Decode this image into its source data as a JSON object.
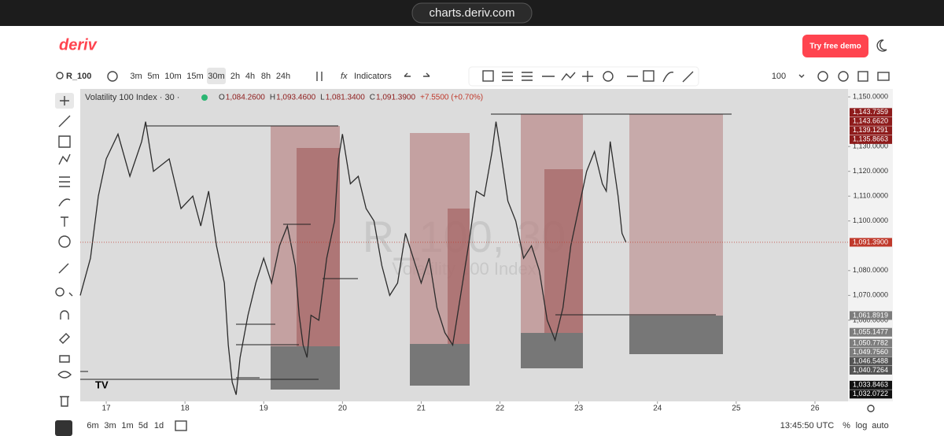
{
  "url": "charts.deriv.com",
  "header": {
    "logo": "deriv",
    "cta": "Try free demo"
  },
  "toolbar": {
    "symbol": "R_100",
    "intervals": [
      "3m",
      "5m",
      "10m",
      "15m",
      "30m",
      "2h",
      "4h",
      "8h",
      "24h"
    ],
    "selected_interval": 4,
    "indicators": "Indicators",
    "zoom": "100"
  },
  "chart": {
    "type": "line",
    "title": "Volatility 100 Index · 30 ·",
    "ohlc": {
      "o_label": "O",
      "o": "1,084.2600",
      "h_label": "H",
      "h": "1,093.4600",
      "l_label": "L",
      "l": "1,081.3400",
      "c_label": "C",
      "c": "1,091.3900",
      "change": "+7.5500 (+0.70%)"
    },
    "watermark": "R_100, 30",
    "watermark_sub": "Volatility 100 Index",
    "series": {
      "color": "#2b2b2b",
      "x": [
        16.67,
        16.8,
        16.9,
        17.0,
        17.15,
        17.3,
        17.45,
        17.5,
        17.6,
        17.8,
        17.95,
        18.1,
        18.2,
        18.3,
        18.4,
        18.5,
        18.55,
        18.6,
        18.65,
        18.7,
        18.8,
        18.9,
        19.0,
        19.1,
        19.2,
        19.3,
        19.4,
        19.45,
        19.5,
        19.55,
        19.6,
        19.7,
        19.8,
        19.9,
        19.95,
        20.0,
        20.1,
        20.2,
        20.3,
        20.4,
        20.5,
        20.6,
        20.7,
        20.8,
        20.9,
        21.0,
        21.1,
        21.2,
        21.3,
        21.4,
        21.5,
        21.6,
        21.7,
        21.8,
        21.9,
        21.95,
        22.0,
        22.1,
        22.2,
        22.3,
        22.4,
        22.5,
        22.6,
        22.7,
        22.8,
        22.9,
        23.0,
        23.1,
        23.2,
        23.3,
        23.35,
        23.4,
        23.5,
        23.55,
        23.6
      ],
      "values": [
        1070,
        1085,
        1110,
        1125,
        1135,
        1118,
        1132,
        1140,
        1120,
        1125,
        1105,
        1110,
        1098,
        1112,
        1090,
        1075,
        1050,
        1035,
        1030,
        1045,
        1062,
        1075,
        1085,
        1075,
        1090,
        1098,
        1082,
        1062,
        1050,
        1045,
        1062,
        1060,
        1085,
        1100,
        1125,
        1135,
        1115,
        1118,
        1105,
        1100,
        1082,
        1070,
        1075,
        1095,
        1085,
        1075,
        1085,
        1065,
        1055,
        1050,
        1070,
        1090,
        1112,
        1110,
        1128,
        1140,
        1130,
        1108,
        1100,
        1085,
        1090,
        1080,
        1060,
        1052,
        1065,
        1090,
        1105,
        1120,
        1128,
        1115,
        1112,
        1132,
        1110,
        1095,
        1091.39
      ]
    },
    "xlim": [
      16.67,
      26.42
    ],
    "ylim": [
      1027.3,
      1153.2
    ],
    "xticks": [
      17,
      18,
      19,
      20,
      21,
      22,
      23,
      24,
      25,
      26
    ],
    "yticks": [
      {
        "value": 1150,
        "label": "1,150.0000"
      },
      {
        "value": 1130,
        "label": "1,130.0000"
      },
      {
        "value": 1120,
        "label": "1,120.0000"
      },
      {
        "value": 1110,
        "label": "1,110.0000"
      },
      {
        "value": 1100,
        "label": "1,100.0000"
      },
      {
        "value": 1080,
        "label": "1,080.0000"
      },
      {
        "value": 1070,
        "label": "1,070.0000"
      },
      {
        "value": 1060,
        "label": "1,060.0000"
      }
    ],
    "tags": [
      {
        "value": 1143.7359,
        "label": "1,143.7359",
        "color": "#8e1b1b"
      },
      {
        "value": 1143.662,
        "label": "1,143.6620",
        "color": "#8e1b1b"
      },
      {
        "value": 1139.1291,
        "label": "1,139.1291",
        "color": "#8e1b1b"
      },
      {
        "value": 1135.8663,
        "label": "1,135.8663",
        "color": "#8e1b1b"
      },
      {
        "value": 1091.39,
        "label": "1,091.3900",
        "color": "#c0392b"
      },
      {
        "value": 1061.8919,
        "label": "1,061.8919",
        "color": "#7d7d7d"
      },
      {
        "value": 1055.1477,
        "label": "1,055.1477",
        "color": "#7d7d7d"
      },
      {
        "value": 1050.7782,
        "label": "1,050.7782",
        "color": "#7d7d7d"
      },
      {
        "value": 1049.756,
        "label": "1,049.7560",
        "color": "#7d7d7d"
      },
      {
        "value": 1046.5488,
        "label": "1,046.5488",
        "color": "#555555"
      },
      {
        "value": 1040.7264,
        "label": "1,040.7264",
        "color": "#555555"
      },
      {
        "value": 1033.8463,
        "label": "1,033.8463",
        "color": "#111111"
      },
      {
        "value": 1032.0722,
        "label": "1,032.0722",
        "color": "#111111"
      }
    ],
    "current_index": 4
  },
  "bottom": {
    "ranges": [
      "6m",
      "3m",
      "1m",
      "5d",
      "1d"
    ],
    "time": "13:45:50 UTC",
    "options": [
      "%",
      "log",
      "auto"
    ]
  }
}
